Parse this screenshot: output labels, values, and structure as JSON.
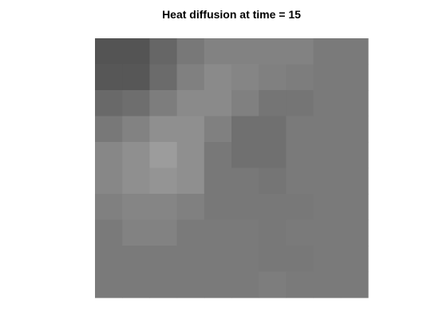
{
  "chart_data": {
    "type": "heatmap",
    "title": "Heat diffusion at time = 15",
    "xlabel": "",
    "ylabel": "",
    "colormap": "gray",
    "grid": false,
    "rows": 10,
    "cols": 10,
    "values": [
      [
        0.33,
        0.33,
        0.4,
        0.47,
        0.51,
        0.51,
        0.51,
        0.51,
        0.48,
        0.48
      ],
      [
        0.34,
        0.34,
        0.42,
        0.5,
        0.54,
        0.52,
        0.5,
        0.49,
        0.48,
        0.48
      ],
      [
        0.41,
        0.43,
        0.49,
        0.54,
        0.54,
        0.5,
        0.46,
        0.46,
        0.48,
        0.48
      ],
      [
        0.47,
        0.51,
        0.56,
        0.56,
        0.5,
        0.44,
        0.44,
        0.48,
        0.48,
        0.48
      ],
      [
        0.53,
        0.56,
        0.61,
        0.56,
        0.47,
        0.44,
        0.44,
        0.48,
        0.48,
        0.48
      ],
      [
        0.53,
        0.56,
        0.58,
        0.56,
        0.47,
        0.47,
        0.46,
        0.48,
        0.48,
        0.48
      ],
      [
        0.5,
        0.52,
        0.52,
        0.5,
        0.47,
        0.47,
        0.47,
        0.47,
        0.48,
        0.48
      ],
      [
        0.48,
        0.51,
        0.51,
        0.48,
        0.48,
        0.48,
        0.47,
        0.48,
        0.48,
        0.48
      ],
      [
        0.48,
        0.48,
        0.48,
        0.48,
        0.48,
        0.48,
        0.47,
        0.47,
        0.48,
        0.48
      ],
      [
        0.48,
        0.48,
        0.48,
        0.48,
        0.48,
        0.48,
        0.49,
        0.48,
        0.48,
        0.48
      ]
    ]
  }
}
